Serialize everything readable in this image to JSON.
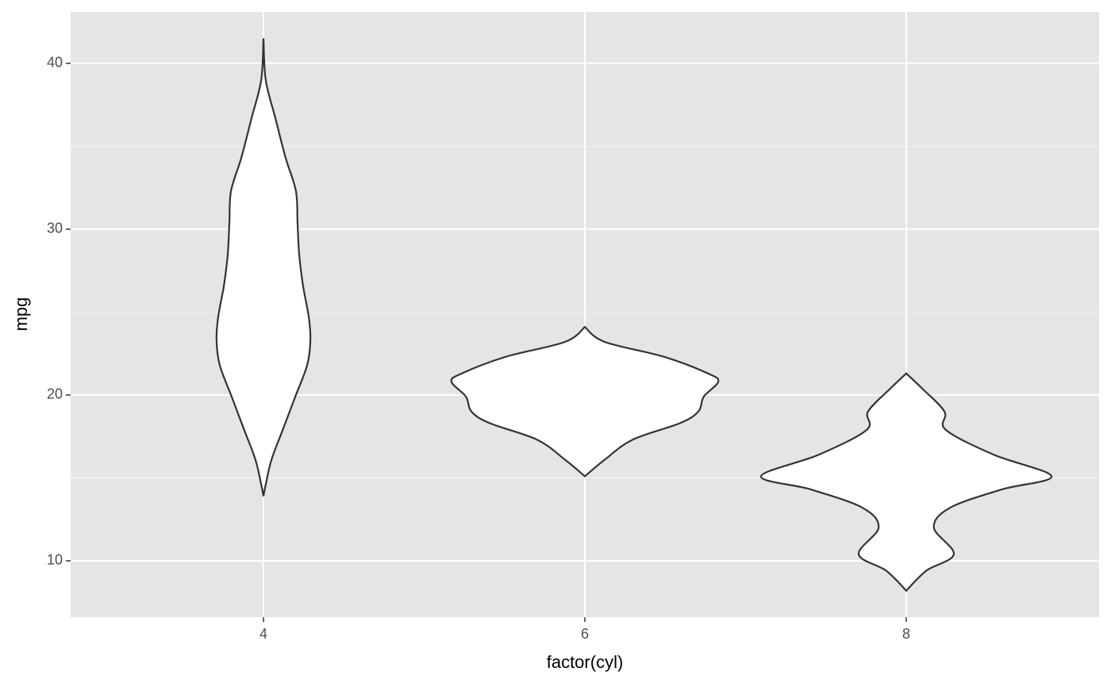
{
  "chart_data": {
    "type": "violin",
    "x_label": "factor(cyl)",
    "y_label": "mpg",
    "categories": [
      "4",
      "6",
      "8"
    ],
    "fill": "#ffffff",
    "line_color": "#333333",
    "ylim": [
      6.6,
      43.1
    ],
    "yticks": [
      10,
      20,
      30,
      40
    ],
    "minor_yticks": [
      15,
      25,
      35
    ],
    "grid": true,
    "violins": [
      {
        "y": [
          41.5,
          39.0,
          36.7,
          34.3,
          32.3,
          30.4,
          28.5,
          26.6,
          24.7,
          23.3,
          21.8,
          19.9,
          18.0,
          16.1,
          14.6,
          13.9
        ],
        "width": [
          0,
          0.007,
          0.037,
          0.069,
          0.101,
          0.106,
          0.111,
          0.123,
          0.141,
          0.146,
          0.136,
          0.099,
          0.062,
          0.025,
          0.007,
          0
        ]
      },
      {
        "y": [
          24.1,
          23.2,
          22.3,
          21.3,
          20.8,
          19.9,
          19.0,
          18.3,
          17.3,
          16.1,
          15.1
        ],
        "width": [
          0,
          0.062,
          0.247,
          0.383,
          0.415,
          0.37,
          0.353,
          0.296,
          0.148,
          0.062,
          0
        ]
      },
      {
        "y": [
          21.3,
          20.4,
          19.0,
          17.9,
          16.4,
          15.1,
          14.3,
          13.2,
          12.0,
          10.4,
          9.4,
          8.2
        ],
        "width": [
          0,
          0.049,
          0.119,
          0.123,
          0.272,
          0.452,
          0.296,
          0.136,
          0.086,
          0.148,
          0.062,
          0
        ]
      }
    ]
  }
}
